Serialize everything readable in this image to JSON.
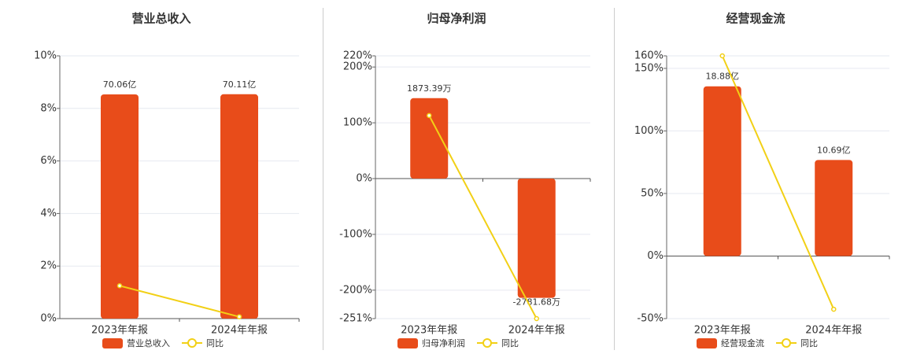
{
  "chart_data": [
    {
      "type": "bar",
      "title": "营业总收入",
      "categories": [
        "2023年年报",
        "2024年年报"
      ],
      "series": [
        {
          "name": "营业总收入",
          "color": "#e84c1a",
          "axis": "y2",
          "values": [
            70.06,
            70.11
          ],
          "value_labels": [
            "70.06亿",
            "70.11亿"
          ]
        },
        {
          "name": "同比",
          "type": "line",
          "color": "#f2d016",
          "values": [
            1.25,
            0.07
          ]
        }
      ],
      "ylim": [
        0,
        10
      ],
      "yticks": [
        {
          "value": 0,
          "label": "0%"
        },
        {
          "value": 2,
          "label": "2%"
        },
        {
          "value": 4,
          "label": "4%"
        },
        {
          "value": 6,
          "label": "6%"
        },
        {
          "value": 8,
          "label": "8%"
        },
        {
          "value": 10,
          "label": "10%"
        }
      ],
      "y2lim": [
        0,
        82.1
      ],
      "grid": true
    },
    {
      "type": "bar",
      "title": "归母净利润",
      "categories": [
        "2023年年报",
        "2024年年报"
      ],
      "series": [
        {
          "name": "归母净利润",
          "color": "#e84c1a",
          "axis": "y2",
          "values": [
            1873.39,
            -2781.68
          ],
          "value_labels": [
            "1873.39万",
            "-2781.68万"
          ]
        },
        {
          "name": "同比",
          "type": "line",
          "color": "#f2d016",
          "values": [
            113,
            -251
          ]
        }
      ],
      "ylim": [
        -251,
        220
      ],
      "yticks": [
        {
          "value": -251,
          "label": "-251%"
        },
        {
          "value": -200,
          "label": "-200%"
        },
        {
          "value": -100,
          "label": "-100%"
        },
        {
          "value": 0,
          "label": "0%"
        },
        {
          "value": 100,
          "label": "100%"
        },
        {
          "value": 200,
          "label": "200%"
        },
        {
          "value": 220,
          "label": "220%"
        }
      ],
      "y2lim": [
        -3265,
        2860
      ],
      "grid": true
    },
    {
      "type": "bar",
      "title": "经营现金流",
      "categories": [
        "2023年年报",
        "2024年年报"
      ],
      "series": [
        {
          "name": "经营现金流",
          "color": "#e84c1a",
          "axis": "y2",
          "values": [
            18.88,
            10.69
          ],
          "value_labels": [
            "18.88亿",
            "10.69亿"
          ]
        },
        {
          "name": "同比",
          "type": "line",
          "color": "#f2d016",
          "values": [
            160,
            -42.5
          ]
        }
      ],
      "ylim": [
        -50,
        160
      ],
      "yticks": [
        {
          "value": -50,
          "label": "-50%"
        },
        {
          "value": 0,
          "label": "0%"
        },
        {
          "value": 50,
          "label": "50%"
        },
        {
          "value": 100,
          "label": "100%"
        },
        {
          "value": 150,
          "label": "150%"
        },
        {
          "value": 160,
          "label": "160%"
        }
      ],
      "y2lim": [
        -6.96,
        22.27
      ],
      "grid": true
    }
  ]
}
